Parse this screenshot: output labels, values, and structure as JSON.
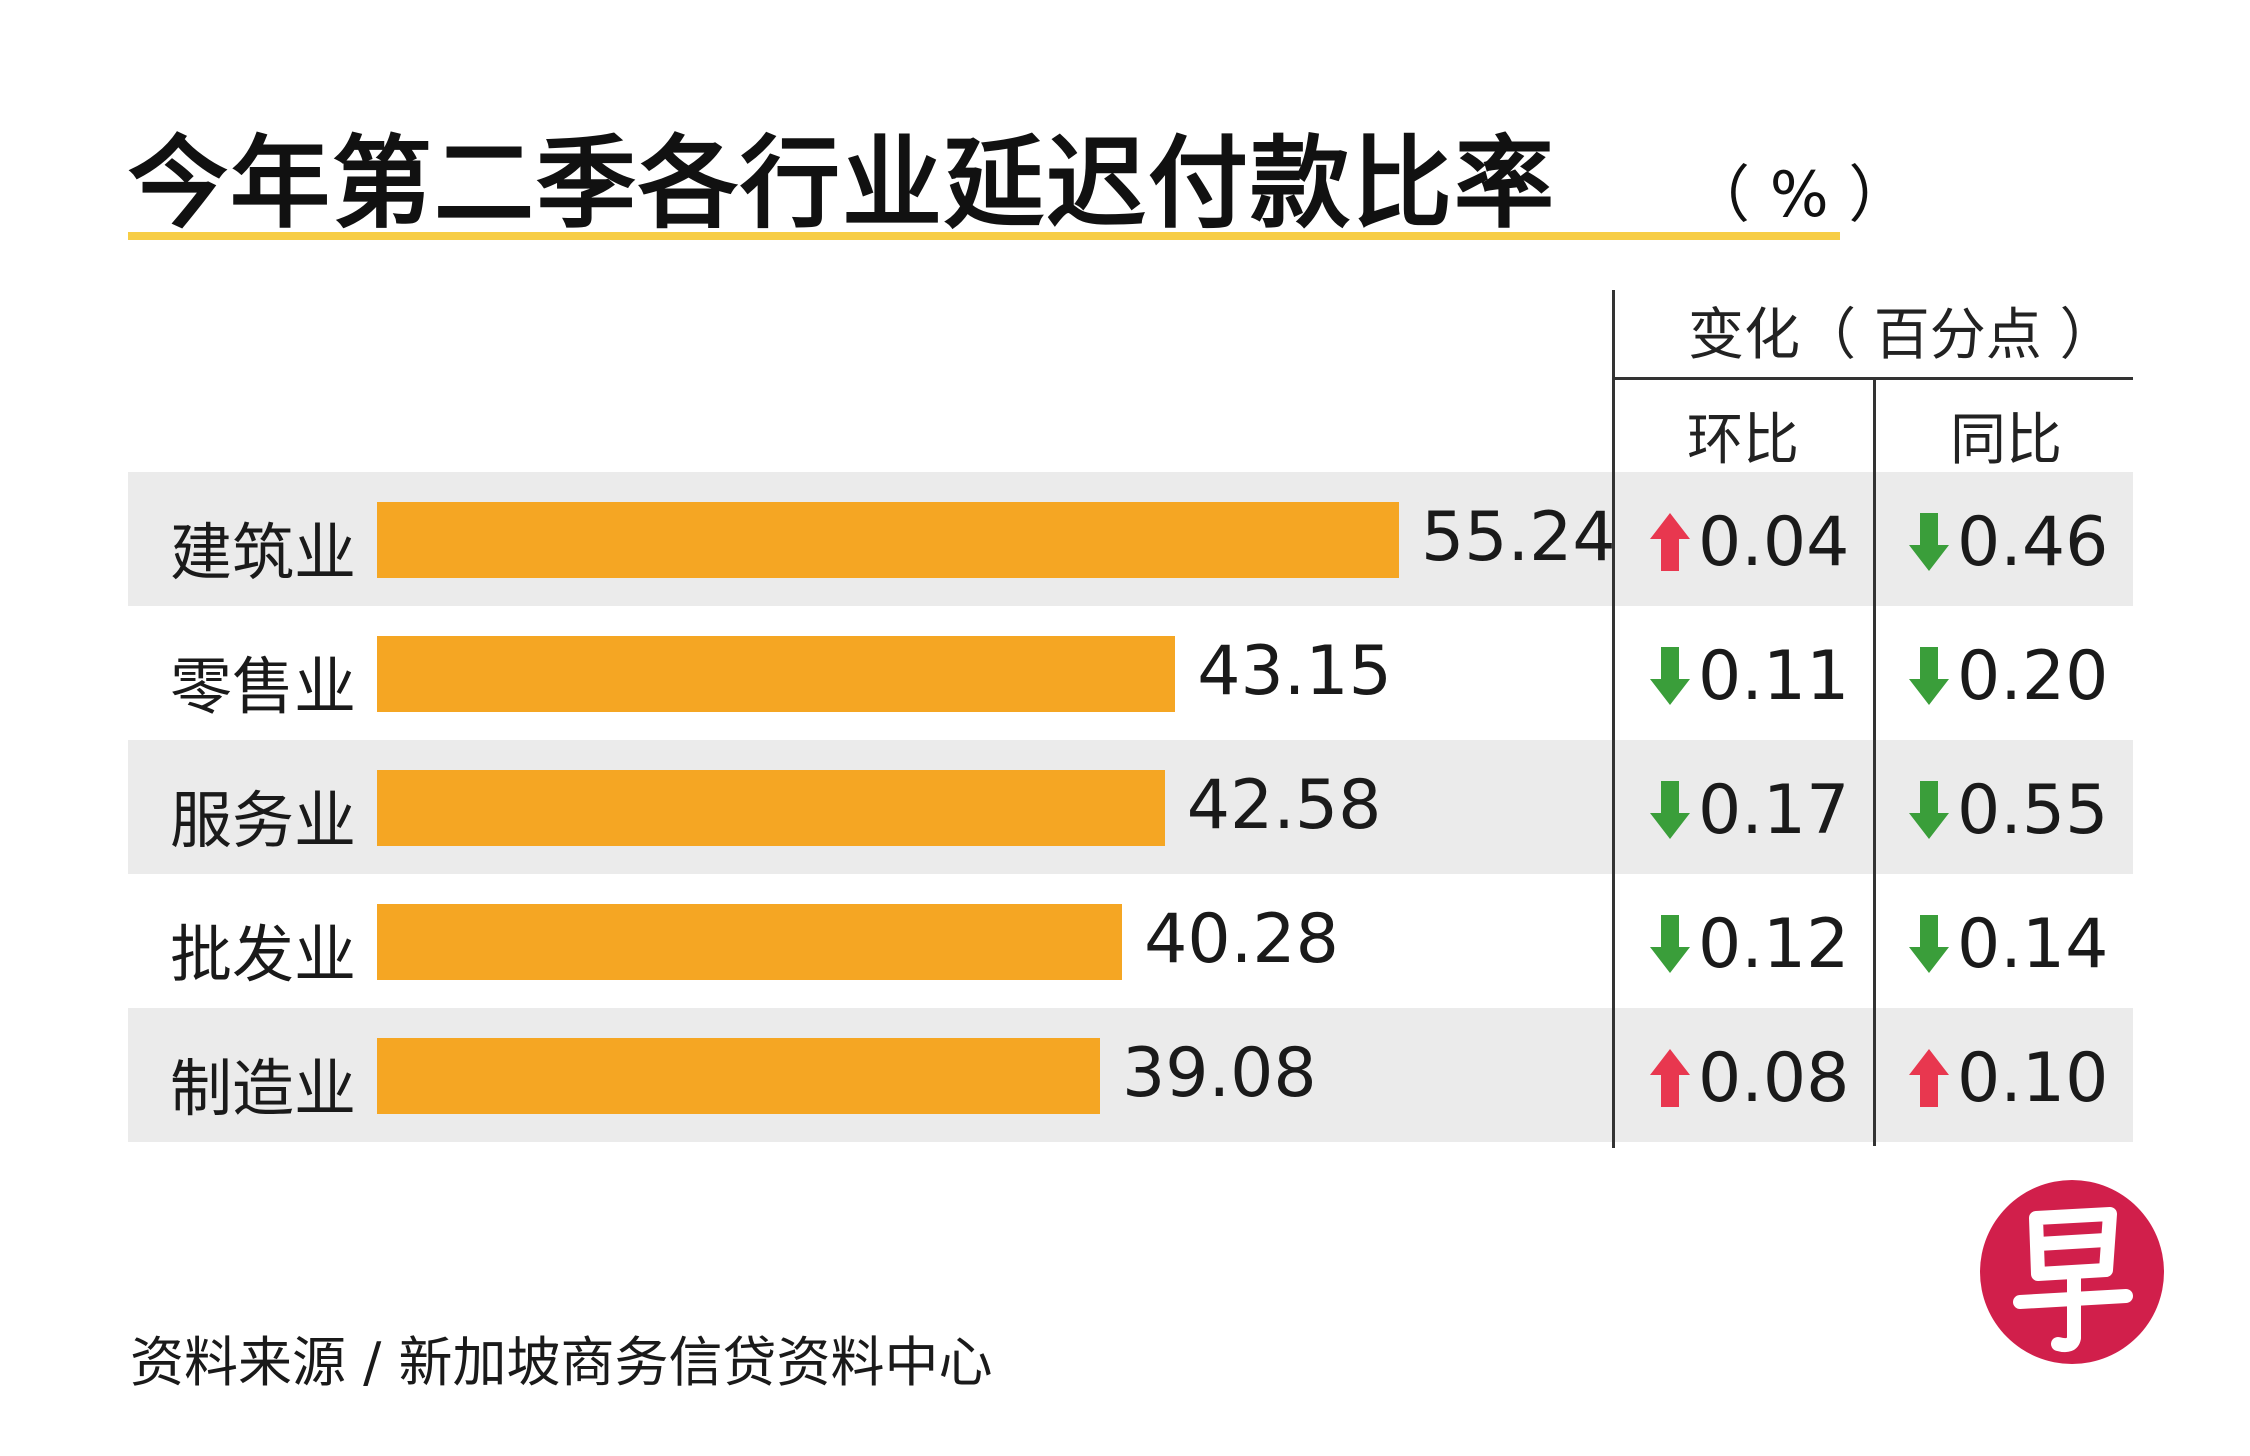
{
  "header": {
    "title": "今年第二季各行业延迟付款比率",
    "unit": "（ % ）"
  },
  "columns": {
    "change_group": "变化（ 百分点 ）",
    "qoq": "环比",
    "yoy": "同比"
  },
  "chart_data": {
    "type": "bar",
    "orientation": "horizontal",
    "title": "今年第二季各行业延迟付款比率",
    "unit": "（ % ）",
    "categories": [
      "建筑业",
      "零售业",
      "服务业",
      "批发业",
      "制造业"
    ],
    "values": [
      55.24,
      43.15,
      42.58,
      40.28,
      39.08
    ],
    "value_labels": [
      "55.24",
      "43.15",
      "42.58",
      "40.28",
      "39.08"
    ],
    "bar_color": "#f5a623",
    "changes": [
      {
        "qoq": {
          "value": "0.04",
          "direction": "up"
        },
        "yoy": {
          "value": "0.46",
          "direction": "down"
        }
      },
      {
        "qoq": {
          "value": "0.11",
          "direction": "down"
        },
        "yoy": {
          "value": "0.20",
          "direction": "down"
        }
      },
      {
        "qoq": {
          "value": "0.17",
          "direction": "down"
        },
        "yoy": {
          "value": "0.55",
          "direction": "down"
        }
      },
      {
        "qoq": {
          "value": "0.12",
          "direction": "down"
        },
        "yoy": {
          "value": "0.14",
          "direction": "down"
        }
      },
      {
        "qoq": {
          "value": "0.08",
          "direction": "up"
        },
        "yoy": {
          "value": "0.10",
          "direction": "up"
        }
      }
    ],
    "colors": {
      "up": "#e8374f",
      "down": "#3a9e3a"
    },
    "grid": false
  },
  "footer": {
    "source": "资料来源 / 新加坡商务信贷资料中心"
  },
  "logo": {
    "text": "早",
    "color": "#d11f4b"
  }
}
